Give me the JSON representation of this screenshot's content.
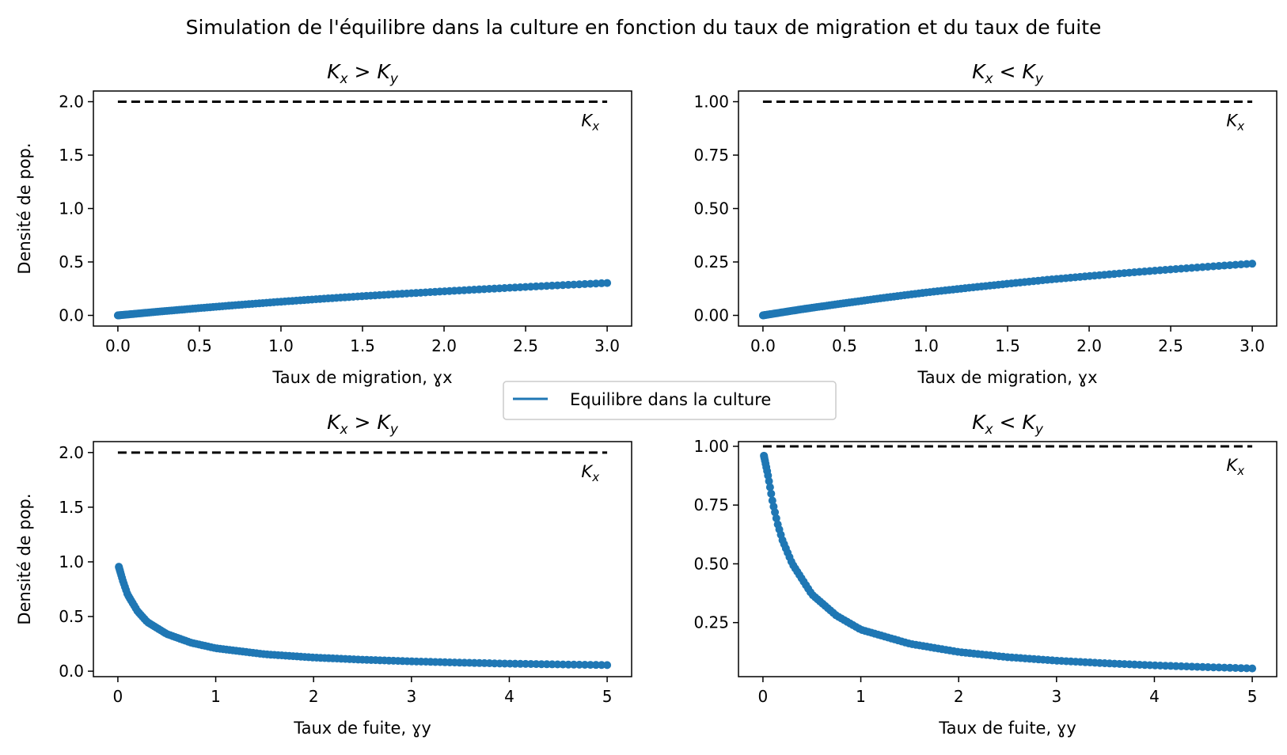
{
  "figure": {
    "suptitle": "Simulation de l'équilibre dans la culture en fonction du taux de migration et du taux de fuite"
  },
  "legend": {
    "label": "Equilibre dans la culture",
    "color": "#1f77b4",
    "placement": "center"
  },
  "chart_data": [
    {
      "type": "scatter",
      "title": "K_x > K_y",
      "title_parts": {
        "a": "K",
        "a_sub": "x",
        "op": ">",
        "b": "K",
        "b_sub": "y"
      },
      "xlabel": "Taux de migration, ɣx",
      "ylabel": "Densité de pop.",
      "xlim": [
        -0.15,
        3.15
      ],
      "ylim": [
        -0.1,
        2.1
      ],
      "xticks": [
        0.0,
        0.5,
        1.0,
        1.5,
        2.0,
        2.5,
        3.0
      ],
      "xtick_labels": [
        "0.0",
        "0.5",
        "1.0",
        "1.5",
        "2.0",
        "2.5",
        "3.0"
      ],
      "yticks": [
        0.0,
        0.5,
        1.0,
        1.5,
        2.0
      ],
      "ytick_labels": [
        "0.0",
        "0.5",
        "1.0",
        "1.5",
        "2.0"
      ],
      "series": [
        {
          "name": "Equilibre dans la culture",
          "color": "#1f77b4",
          "x": [
            0,
            0.25,
            0.5,
            0.75,
            1.0,
            1.25,
            1.5,
            1.75,
            2.0,
            2.25,
            2.5,
            2.75,
            3.0
          ],
          "y": [
            0.0,
            0.035,
            0.068,
            0.099,
            0.128,
            0.155,
            0.18,
            0.203,
            0.225,
            0.246,
            0.266,
            0.285,
            0.303
          ]
        }
      ],
      "hline": {
        "y": 2.0,
        "x": [
          0,
          3.0
        ],
        "style": "dashed",
        "color": "#000000",
        "label": "K",
        "label_sub": "x"
      }
    },
    {
      "type": "scatter",
      "title": "K_x < K_y",
      "title_parts": {
        "a": "K",
        "a_sub": "x",
        "op": "<",
        "b": "K",
        "b_sub": "y"
      },
      "xlabel": "Taux de migration, ɣx",
      "ylabel": "",
      "xlim": [
        -0.15,
        3.15
      ],
      "ylim": [
        -0.05,
        1.05
      ],
      "xticks": [
        0.0,
        0.5,
        1.0,
        1.5,
        2.0,
        2.5,
        3.0
      ],
      "xtick_labels": [
        "0.0",
        "0.5",
        "1.0",
        "1.5",
        "2.0",
        "2.5",
        "3.0"
      ],
      "yticks": [
        0.0,
        0.25,
        0.5,
        0.75,
        1.0
      ],
      "ytick_labels": [
        "0.00",
        "0.25",
        "0.50",
        "0.75",
        "1.00"
      ],
      "series": [
        {
          "name": "Equilibre dans la culture",
          "color": "#1f77b4",
          "x": [
            0,
            0.25,
            0.5,
            0.75,
            1.0,
            1.25,
            1.5,
            1.75,
            2.0,
            2.25,
            2.5,
            2.75,
            3.0
          ],
          "y": [
            0.0,
            0.03,
            0.057,
            0.083,
            0.107,
            0.128,
            0.148,
            0.167,
            0.184,
            0.2,
            0.215,
            0.229,
            0.242
          ]
        }
      ],
      "hline": {
        "y": 1.0,
        "x": [
          0,
          3.0
        ],
        "style": "dashed",
        "color": "#000000",
        "label": "K",
        "label_sub": "x"
      }
    },
    {
      "type": "scatter",
      "title": "K_x > K_y",
      "title_parts": {
        "a": "K",
        "a_sub": "x",
        "op": ">",
        "b": "K",
        "b_sub": "y"
      },
      "xlabel": "Taux de fuite, ɣy",
      "ylabel": "Densité de pop.",
      "xlim": [
        -0.25,
        5.25
      ],
      "ylim": [
        -0.05,
        2.1
      ],
      "xticks": [
        0,
        1,
        2,
        3,
        4,
        5
      ],
      "xtick_labels": [
        "0",
        "1",
        "2",
        "3",
        "4",
        "5"
      ],
      "yticks": [
        0.0,
        0.5,
        1.0,
        1.5,
        2.0
      ],
      "ytick_labels": [
        "0.0",
        "0.5",
        "1.0",
        "1.5",
        "2.0"
      ],
      "series": [
        {
          "name": "Equilibre dans la culture",
          "color": "#1f77b4",
          "x": [
            0.01,
            0.05,
            0.1,
            0.2,
            0.3,
            0.5,
            0.75,
            1.0,
            1.5,
            2.0,
            2.5,
            3.0,
            3.5,
            4.0,
            4.5,
            5.0
          ],
          "y": [
            0.955,
            0.83,
            0.7,
            0.55,
            0.45,
            0.34,
            0.26,
            0.21,
            0.155,
            0.125,
            0.105,
            0.09,
            0.078,
            0.069,
            0.062,
            0.056
          ]
        }
      ],
      "hline": {
        "y": 2.0,
        "x": [
          0,
          5.0
        ],
        "style": "dashed",
        "color": "#000000",
        "label": "K",
        "label_sub": "x"
      }
    },
    {
      "type": "scatter",
      "title": "K_x < K_y",
      "title_parts": {
        "a": "K",
        "a_sub": "x",
        "op": "<",
        "b": "K",
        "b_sub": "y"
      },
      "xlabel": "Taux de fuite, ɣy",
      "ylabel": "",
      "xlim": [
        -0.25,
        5.25
      ],
      "ylim": [
        0.02,
        1.02
      ],
      "xticks": [
        0,
        1,
        2,
        3,
        4,
        5
      ],
      "xtick_labels": [
        "0",
        "1",
        "2",
        "3",
        "4",
        "5"
      ],
      "yticks": [
        0.25,
        0.5,
        0.75,
        1.0
      ],
      "ytick_labels": [
        "0.25",
        "0.50",
        "0.75",
        "1.00"
      ],
      "series": [
        {
          "name": "Equilibre dans la culture",
          "color": "#1f77b4",
          "x": [
            0.01,
            0.05,
            0.1,
            0.15,
            0.2,
            0.3,
            0.5,
            0.75,
            1.0,
            1.5,
            2.0,
            2.5,
            3.0,
            3.5,
            4.0,
            4.5,
            5.0
          ],
          "y": [
            0.96,
            0.88,
            0.76,
            0.67,
            0.6,
            0.5,
            0.37,
            0.28,
            0.22,
            0.16,
            0.125,
            0.103,
            0.088,
            0.077,
            0.068,
            0.061,
            0.055
          ]
        }
      ],
      "hline": {
        "y": 1.0,
        "x": [
          0,
          5.0
        ],
        "style": "dashed",
        "color": "#000000",
        "label": "K",
        "label_sub": "x"
      }
    }
  ]
}
